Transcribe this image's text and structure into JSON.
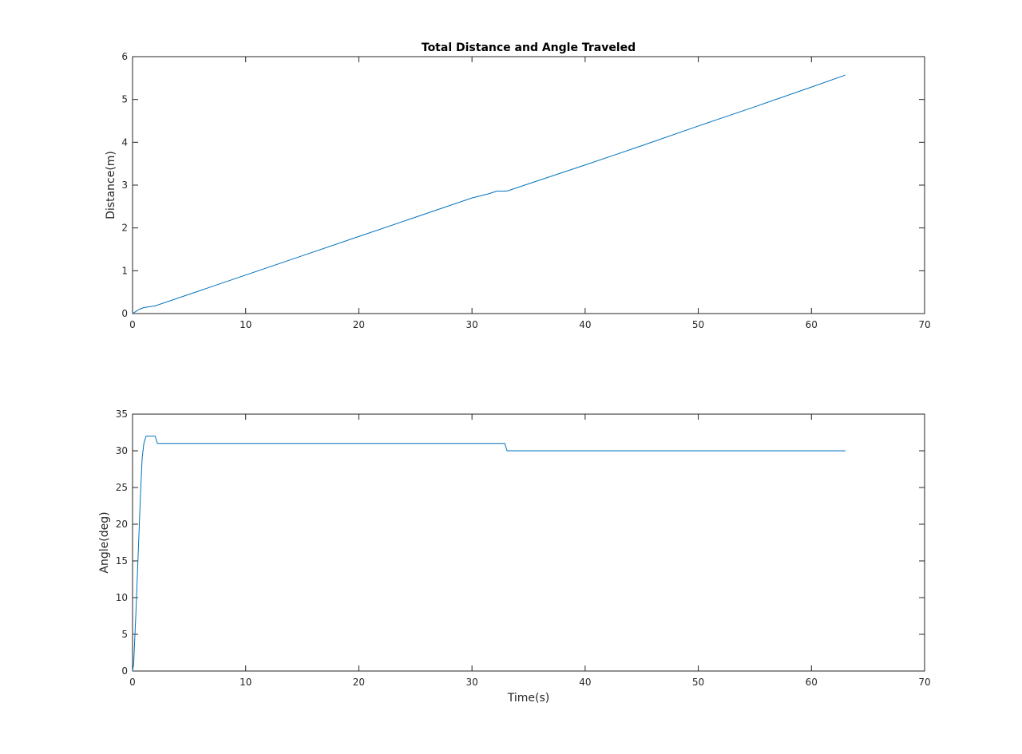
{
  "chart_data": [
    {
      "type": "line",
      "title": "Total Distance and Angle Traveled",
      "xlabel": "",
      "ylabel": "Distance(m)",
      "xlim": [
        0,
        70
      ],
      "ylim": [
        0,
        6
      ],
      "xticks": [
        "0",
        "10",
        "20",
        "30",
        "40",
        "50",
        "60",
        "70"
      ],
      "yticks": [
        "0",
        "1",
        "2",
        "3",
        "4",
        "5",
        "6"
      ],
      "grid": false,
      "series": [
        {
          "color": "#0072BD",
          "x": [
            0,
            0.3,
            0.6,
            1.0,
            2.0,
            5,
            10,
            15,
            20,
            25,
            28,
            30,
            31.5,
            32.2,
            33.0,
            33.2,
            35,
            40,
            45,
            50,
            55,
            60,
            63
          ],
          "y": [
            0,
            0.05,
            0.1,
            0.14,
            0.18,
            0.45,
            0.9,
            1.35,
            1.8,
            2.25,
            2.52,
            2.7,
            2.8,
            2.86,
            2.86,
            2.87,
            3.03,
            3.47,
            3.92,
            4.38,
            4.83,
            5.29,
            5.57
          ]
        }
      ]
    },
    {
      "type": "line",
      "title": "",
      "xlabel": "Time(s)",
      "ylabel": "Angle(deg)",
      "xlim": [
        0,
        70
      ],
      "ylim": [
        0,
        35
      ],
      "xticks": [
        "0",
        "10",
        "20",
        "30",
        "40",
        "50",
        "60",
        "70"
      ],
      "yticks": [
        "0",
        "5",
        "10",
        "15",
        "20",
        "25",
        "30",
        "35"
      ],
      "grid": false,
      "series": [
        {
          "color": "#0072BD",
          "x": [
            0,
            0.1,
            0.3,
            0.5,
            0.7,
            0.85,
            1.0,
            1.2,
            2.0,
            2.2,
            32.9,
            33.1,
            63
          ],
          "y": [
            0,
            1,
            8,
            16,
            24,
            29,
            31,
            32,
            32,
            31,
            31,
            30,
            30
          ]
        }
      ]
    }
  ]
}
